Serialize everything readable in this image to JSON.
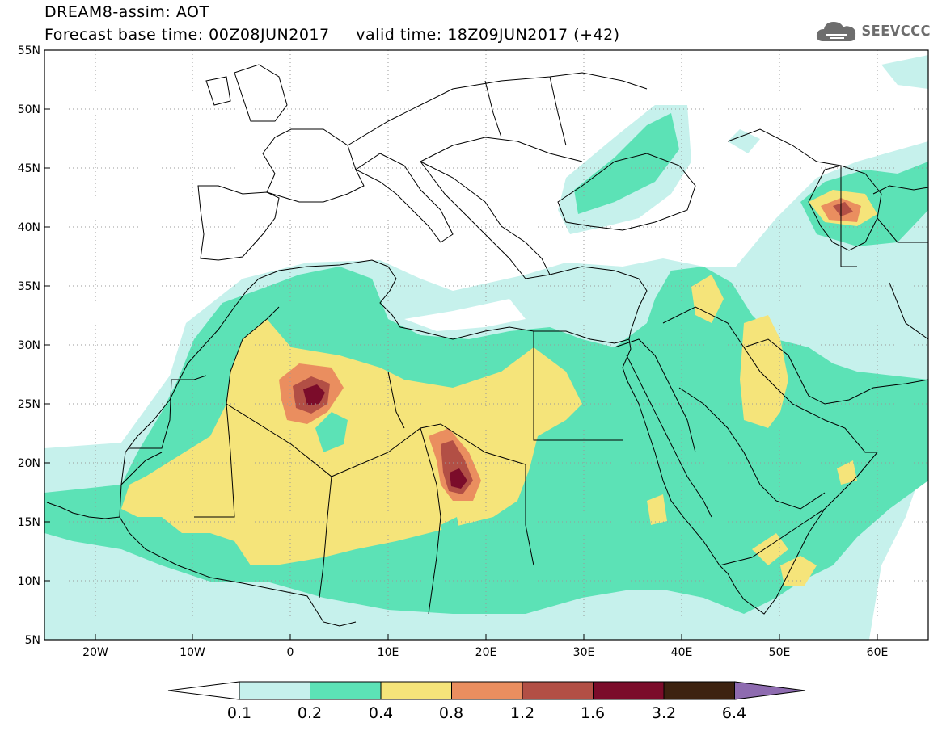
{
  "title": {
    "line1": "DREAM8-assim: AOT",
    "line2": "Forecast base time: 00Z08JUN2017     valid time: 18Z09JUN2017 (+42)"
  },
  "logo": {
    "text": "SEEVCCC",
    "icon": "cloud-icon"
  },
  "map": {
    "lon_range": [
      -25,
      65
    ],
    "lat_range": [
      5,
      55
    ],
    "lat_ticks": [
      "55N",
      "50N",
      "45N",
      "40N",
      "35N",
      "30N",
      "25N",
      "20N",
      "15N",
      "10N",
      "5N"
    ],
    "lon_ticks": [
      "20W",
      "10W",
      "0",
      "10E",
      "20E",
      "30E",
      "40E",
      "50E",
      "60E"
    ],
    "gridlines": "dotted"
  },
  "legend": {
    "labels": [
      "0.1",
      "0.2",
      "0.4",
      "0.8",
      "1.2",
      "1.6",
      "3.2",
      "6.4"
    ],
    "colors": [
      "#ffffff",
      "#c6f1ec",
      "#5ce2b6",
      "#f5e47a",
      "#ea8e5f",
      "#b24f45",
      "#7b0c2a",
      "#3d2210",
      "#8e6bb0"
    ]
  }
}
